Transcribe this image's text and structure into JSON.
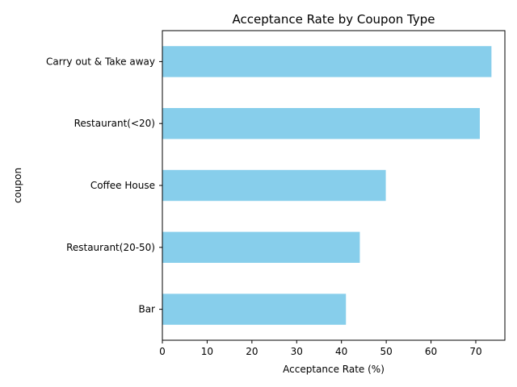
{
  "chart_data": {
    "type": "bar",
    "orientation": "horizontal",
    "title": "Acceptance Rate by Coupon Type",
    "xlabel": "Acceptance Rate (%)",
    "ylabel": "coupon",
    "categories": [
      "Carry out & Take away",
      "Restaurant(<20)",
      "Coffee House",
      "Restaurant(20-50)",
      "Bar"
    ],
    "values": [
      73.5,
      70.9,
      49.9,
      44.1,
      41.0
    ],
    "xlim": [
      0,
      76.5
    ],
    "xticks": [
      0,
      10,
      20,
      30,
      40,
      50,
      60,
      70
    ],
    "grid": false,
    "bar_color": "#87CEEB"
  }
}
